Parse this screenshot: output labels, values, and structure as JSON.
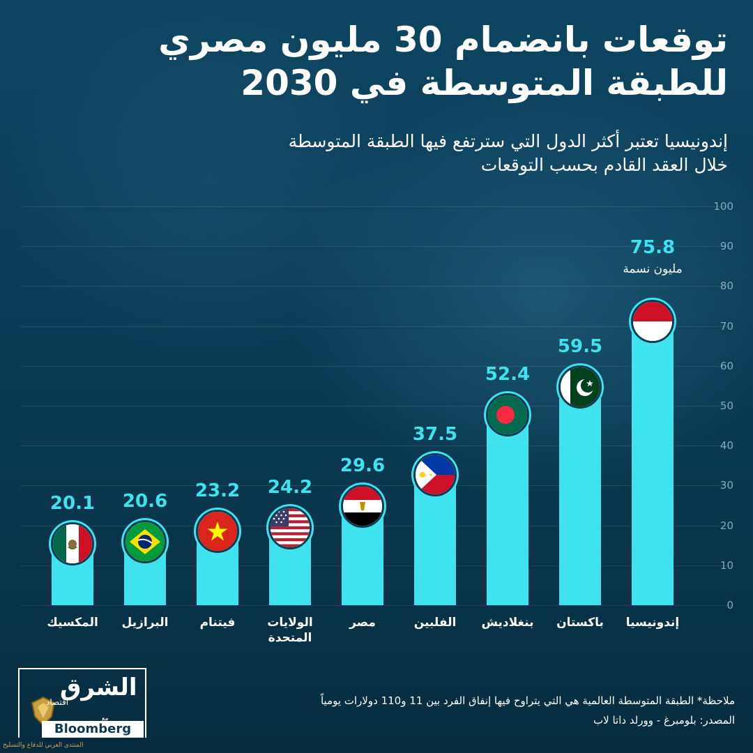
{
  "header": {
    "title_line1": "توقعات بانضمام 30 مليون مصري",
    "title_line2": "للطبقة المتوسطة في 2030",
    "subtitle_line1": "إندونيسيا تعتبر أكثر الدول التي سترتفع فيها الطبقة المتوسطة",
    "subtitle_line2": "خلال العقد القادم بحسب التوقعات"
  },
  "chart_data": {
    "type": "bar",
    "categories": [
      "المكسيك",
      "البرازيل",
      "فيتنام",
      "الولايات المتحدة",
      "مصر",
      "الفلبين",
      "بنغلاديش",
      "باكستان",
      "إندونيسيا"
    ],
    "values": [
      20.1,
      20.6,
      23.2,
      24.2,
      29.6,
      37.5,
      52.4,
      59.5,
      75.8
    ],
    "value_labels": [
      "20.1",
      "20.6",
      "23.2",
      "24.2",
      "29.6",
      "37.5",
      "52.4",
      "59.5",
      "75.8"
    ],
    "flags": [
      "mexico-flag",
      "brazil-flag",
      "vietnam-flag",
      "usa-flag",
      "egypt-flag",
      "philippines-flag",
      "bangladesh-flag",
      "pakistan-flag",
      "indonesia-flag"
    ],
    "unit_annotation": "مليون نسمة",
    "ylim": [
      0,
      100
    ],
    "yticks": [
      "0",
      "10",
      "20",
      "30",
      "40",
      "50",
      "60",
      "70",
      "80",
      "90",
      "100"
    ],
    "grid": true,
    "bar_color": "#3fe3ee",
    "value_color": "#3fe3ee"
  },
  "footer": {
    "note": "ملاحظة* الطبقة المتوسطة العالمية هي التي يتراوح فيها إنفاق الفرد بين 11 و110 دولارات يومياً",
    "source": "المصدر: بلومبرغ - وورلد داتا لاب"
  },
  "logo": {
    "name": "الشرق",
    "sub": "اقتصاد",
    "with": "مع",
    "partner": "Bloomberg"
  },
  "watermark": "المنتدى العربي للدفاع والتسليح",
  "colors": {
    "background": "#0b3a53",
    "accent": "#3fe3ee",
    "text": "#ffffff"
  }
}
